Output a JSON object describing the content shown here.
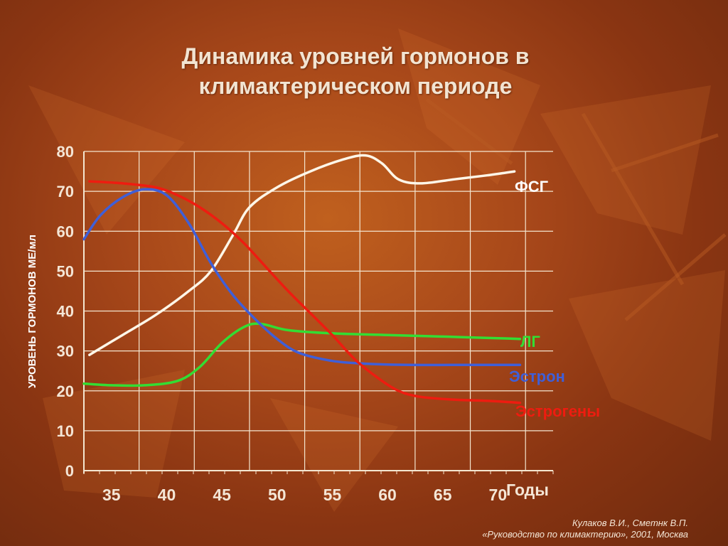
{
  "title_line1": "Динамика уровней гормонов в",
  "title_line2": "климактерическом периоде",
  "citation": {
    "line1": "Кулаков В.И., Сметнк В.П.",
    "line2": "«Руководство по климактерию», 2001, Москва"
  },
  "colors": {
    "grid": "#f4e6d0",
    "tick_text": "#f4e6d6",
    "ylabel_text": "#ffffff"
  },
  "chart_data": {
    "type": "line",
    "title": "Динамика уровней гормонов в климактерическом периоде",
    "xlabel": "Годы",
    "ylabel": "УРОВЕНЬ ГОРМОНОВ МЕ/мл",
    "xlim": [
      32.5,
      75
    ],
    "ylim": [
      0,
      80
    ],
    "xticks": [
      35,
      40,
      45,
      50,
      55,
      60,
      65,
      70
    ],
    "yticks": [
      0,
      10,
      20,
      30,
      40,
      50,
      60,
      70,
      80
    ],
    "grid": true,
    "series": [
      {
        "name": "ФСГ",
        "color": "#fdf6e8",
        "x": [
          33,
          36,
          39,
          42,
          44,
          46,
          47.5,
          50,
          53,
          56,
          58,
          59.5,
          61,
          63,
          66,
          69,
          71.5
        ],
        "y": [
          29,
          34,
          39,
          45,
          50,
          59,
          66,
          71,
          75,
          78,
          79,
          77,
          73,
          72,
          73,
          74,
          75
        ]
      },
      {
        "name": "ЛГ",
        "color": "#33dd33",
        "x": [
          32.5,
          35,
          38,
          41,
          43,
          45,
          47,
          48.5,
          51,
          55,
          60,
          65,
          70,
          72
        ],
        "y": [
          21.8,
          21.4,
          21.4,
          22.5,
          26,
          32,
          36,
          36.8,
          35.2,
          34.4,
          34,
          33.6,
          33.2,
          33
        ]
      },
      {
        "name": "Эстрон",
        "color": "#3f5fd8",
        "x": [
          32.5,
          34,
          36,
          38,
          40,
          42,
          44,
          46,
          48,
          50,
          52,
          55,
          58,
          62,
          66,
          70,
          72
        ],
        "y": [
          58,
          64,
          68.5,
          70.5,
          69,
          62,
          52,
          44,
          38,
          33,
          29.5,
          27.5,
          26.8,
          26.5,
          26.5,
          26.5,
          26.5
        ]
      },
      {
        "name": "Эстрогены",
        "color": "#ee1c10",
        "x": [
          33,
          36,
          39,
          41,
          43,
          45,
          47,
          49,
          51,
          53,
          55,
          57,
          59,
          61,
          63,
          66,
          69,
          72
        ],
        "y": [
          72.5,
          72,
          71,
          69,
          66,
          62,
          57,
          51,
          45,
          39.5,
          34,
          28,
          23.5,
          20,
          18.5,
          17.8,
          17.5,
          17
        ]
      }
    ],
    "annotations": [
      {
        "text": "ФСГ",
        "color": "#ffffff"
      },
      {
        "text": "ЛГ",
        "color": "#33dd33"
      },
      {
        "text": "Эстрон",
        "color": "#3f5fd8"
      },
      {
        "text": "Эстрогены",
        "color": "#ee1c10"
      }
    ]
  }
}
